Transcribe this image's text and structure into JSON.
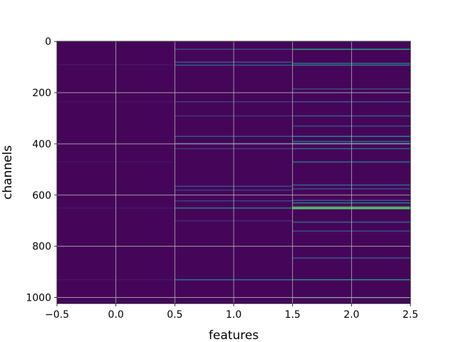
{
  "chart_data": {
    "type": "heatmap",
    "xlabel": "features",
    "ylabel": "channels",
    "x_categories": [
      0,
      1,
      2
    ],
    "xlim": [
      -0.5,
      2.5
    ],
    "ylim": [
      1023.5,
      -0.5
    ],
    "y_inverted": true,
    "n_rows": 1024,
    "x_ticks": [
      -0.5,
      0.0,
      0.5,
      1.0,
      1.5,
      2.0,
      2.5
    ],
    "x_tick_labels": [
      "−0.5",
      "0.0",
      "0.5",
      "1.0",
      "1.5",
      "2.0",
      "2.5"
    ],
    "y_ticks": [
      0,
      200,
      400,
      600,
      800,
      1000
    ],
    "y_tick_labels": [
      "0",
      "200",
      "400",
      "600",
      "800",
      "1000"
    ],
    "grid": true,
    "colormap": "viridis",
    "background_level": 0.02,
    "columns": [
      {
        "feature": 0,
        "highlights": [
          {
            "channel": 90,
            "level": 0.08
          },
          {
            "channel": 235,
            "level": 0.07
          },
          {
            "channel": 470,
            "level": 0.07
          },
          {
            "channel": 650,
            "level": 0.09
          },
          {
            "channel": 930,
            "level": 0.08
          }
        ]
      },
      {
        "feature": 1,
        "highlights": [
          {
            "channel": 30,
            "level": 0.25
          },
          {
            "channel": 80,
            "level": 0.3
          },
          {
            "channel": 92,
            "level": 0.3
          },
          {
            "channel": 235,
            "level": 0.2
          },
          {
            "channel": 290,
            "level": 0.18
          },
          {
            "channel": 370,
            "level": 0.3
          },
          {
            "channel": 398,
            "level": 0.28
          },
          {
            "channel": 418,
            "level": 0.2
          },
          {
            "channel": 565,
            "level": 0.25
          },
          {
            "channel": 580,
            "level": 0.2
          },
          {
            "channel": 622,
            "level": 0.22
          },
          {
            "channel": 650,
            "level": 0.45
          },
          {
            "channel": 700,
            "level": 0.15
          },
          {
            "channel": 930,
            "level": 0.42
          }
        ]
      },
      {
        "feature": 2,
        "highlights": [
          {
            "channel": 30,
            "level": 0.6
          },
          {
            "channel": 85,
            "level": 0.4
          },
          {
            "channel": 92,
            "level": 0.45
          },
          {
            "channel": 185,
            "level": 0.25
          },
          {
            "channel": 235,
            "level": 0.3
          },
          {
            "channel": 290,
            "level": 0.3
          },
          {
            "channel": 330,
            "level": 0.25
          },
          {
            "channel": 370,
            "level": 0.5
          },
          {
            "channel": 390,
            "level": 0.35
          },
          {
            "channel": 398,
            "level": 0.5
          },
          {
            "channel": 418,
            "level": 0.35
          },
          {
            "channel": 470,
            "level": 0.4
          },
          {
            "channel": 560,
            "level": 0.35
          },
          {
            "channel": 575,
            "level": 0.25
          },
          {
            "channel": 620,
            "level": 0.3
          },
          {
            "channel": 630,
            "level": 0.45
          },
          {
            "channel": 645,
            "level": 0.55
          },
          {
            "channel": 650,
            "level": 0.95
          },
          {
            "channel": 653,
            "level": 0.6
          },
          {
            "channel": 705,
            "level": 0.35
          },
          {
            "channel": 740,
            "level": 0.25
          },
          {
            "channel": 845,
            "level": 0.3
          },
          {
            "channel": 930,
            "level": 0.55
          },
          {
            "channel": 1000,
            "level": 0.3
          }
        ]
      }
    ]
  }
}
